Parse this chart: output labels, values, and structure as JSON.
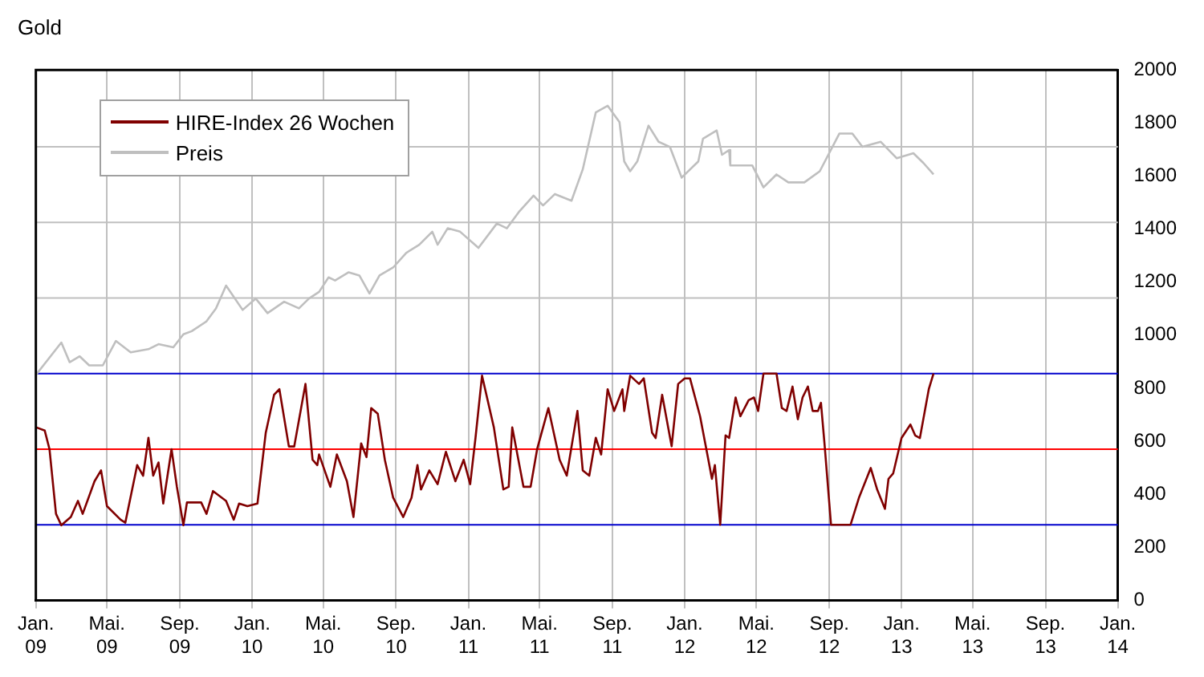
{
  "chart_data": {
    "type": "line",
    "title": "Gold",
    "xlim": [
      "2009-01",
      "2014-01"
    ],
    "xticks": [
      {
        "value": "2009-01",
        "label": "Jan.\n09"
      },
      {
        "value": "2009-05",
        "label": "Mai.\n09"
      },
      {
        "value": "2009-09",
        "label": "Sep.\n09"
      },
      {
        "value": "2010-01",
        "label": "Jan.\n10"
      },
      {
        "value": "2010-05",
        "label": "Mai.\n10"
      },
      {
        "value": "2010-09",
        "label": "Sep.\n10"
      },
      {
        "value": "2011-01",
        "label": "Jan.\n11"
      },
      {
        "value": "2011-05",
        "label": "Mai.\n11"
      },
      {
        "value": "2011-09",
        "label": "Sep.\n11"
      },
      {
        "value": "2012-01",
        "label": "Jan.\n12"
      },
      {
        "value": "2012-05",
        "label": "Mai.\n12"
      },
      {
        "value": "2012-09",
        "label": "Sep.\n12"
      },
      {
        "value": "2013-01",
        "label": "Jan.\n13"
      },
      {
        "value": "2013-05",
        "label": "Mai.\n13"
      },
      {
        "value": "2013-09",
        "label": "Sep.\n13"
      },
      {
        "value": "2014-01",
        "label": "Jan.\n14"
      }
    ],
    "ylim": [
      0,
      2000
    ],
    "yticks": [
      0,
      200,
      400,
      600,
      800,
      1000,
      1200,
      1400,
      1600,
      1800,
      2000
    ],
    "grid": "x",
    "legend": "top left",
    "ref_lines": [
      {
        "axis": "y",
        "value": 855,
        "color": "#0000cc"
      },
      {
        "axis": "y",
        "value": 570,
        "color": "#ff0000"
      },
      {
        "axis": "y",
        "value": 285,
        "color": "#0000cc"
      },
      {
        "axis": "y",
        "value": 1140,
        "color": "#c0c0c0"
      },
      {
        "axis": "y",
        "value": 1425,
        "color": "#c0c0c0"
      },
      {
        "axis": "y",
        "value": 1710,
        "color": "#c0c0c0"
      }
    ],
    "series": [
      {
        "name": "HIRE-Index 26 Wochen",
        "color": "#800000",
        "x": [
          "2009-01-02",
          "2009-01-16",
          "2009-01-24",
          "2009-02-04",
          "2009-02-13",
          "2009-03-01",
          "2009-03-13",
          "2009-03-21",
          "2009-04-10",
          "2009-04-21",
          "2009-05-01",
          "2009-05-24",
          "2009-06-01",
          "2009-06-21",
          "2009-07-01",
          "2009-07-10",
          "2009-07-18",
          "2009-07-27",
          "2009-08-04",
          "2009-08-18",
          "2009-08-27",
          "2009-09-07",
          "2009-09-13",
          "2009-10-07",
          "2009-10-16",
          "2009-10-27",
          "2009-11-18",
          "2009-12-01",
          "2009-12-10",
          "2009-12-24",
          "2010-01-10",
          "2010-01-24",
          "2010-02-07",
          "2010-02-16",
          "2010-03-04",
          "2010-03-13",
          "2010-04-01",
          "2010-04-13",
          "2010-04-21",
          "2010-04-24",
          "2010-05-13",
          "2010-05-24",
          "2010-06-10",
          "2010-06-21",
          "2010-07-04",
          "2010-07-13",
          "2010-07-21",
          "2010-08-01",
          "2010-08-13",
          "2010-08-27",
          "2010-09-13",
          "2010-09-27",
          "2010-10-07",
          "2010-10-13",
          "2010-10-27",
          "2010-11-10",
          "2010-11-24",
          "2010-12-10",
          "2010-12-24",
          "2011-01-04",
          "2011-01-13",
          "2011-01-24",
          "2011-02-13",
          "2011-03-01",
          "2011-03-10",
          "2011-03-16",
          "2011-04-04",
          "2011-04-16",
          "2011-04-27",
          "2011-05-16",
          "2011-06-04",
          "2011-06-16",
          "2011-07-04",
          "2011-07-13",
          "2011-07-24",
          "2011-08-04",
          "2011-08-13",
          "2011-08-24",
          "2011-09-04",
          "2011-09-18",
          "2011-09-21",
          "2011-10-01",
          "2011-10-16",
          "2011-10-24",
          "2011-11-07",
          "2011-11-13",
          "2011-11-24",
          "2011-12-10",
          "2011-12-21",
          "2012-01-01",
          "2012-01-10",
          "2012-01-27",
          "2012-02-10",
          "2012-02-16",
          "2012-02-21",
          "2012-03-01",
          "2012-03-10",
          "2012-03-16",
          "2012-03-27",
          "2012-04-04",
          "2012-04-18",
          "2012-04-27",
          "2012-05-04",
          "2012-05-13",
          "2012-06-04",
          "2012-06-13",
          "2012-06-21",
          "2012-07-01",
          "2012-07-10",
          "2012-07-18",
          "2012-07-27",
          "2012-08-04",
          "2012-08-13",
          "2012-08-18",
          "2012-08-24",
          "2012-09-04",
          "2012-10-07",
          "2012-10-21",
          "2012-11-10",
          "2012-11-21",
          "2012-12-04",
          "2012-12-10",
          "2012-12-18",
          "2013-01-01",
          "2013-01-16",
          "2013-01-24",
          "2013-02-01",
          "2013-02-16",
          "2013-02-24"
        ],
        "values": [
          652,
          640,
          570,
          326,
          283,
          314,
          375,
          326,
          449,
          490,
          355,
          304,
          293,
          510,
          470,
          613,
          470,
          520,
          365,
          570,
          428,
          283,
          369,
          369,
          326,
          412,
          375,
          304,
          365,
          355,
          365,
          632,
          775,
          796,
          580,
          580,
          816,
          530,
          510,
          550,
          428,
          550,
          449,
          314,
          592,
          540,
          725,
          704,
          530,
          387,
          314,
          387,
          510,
          418,
          490,
          438,
          560,
          449,
          530,
          438,
          613,
          847,
          652,
          418,
          428,
          652,
          428,
          428,
          570,
          725,
          530,
          470,
          714,
          490,
          470,
          613,
          550,
          796,
          714,
          796,
          714,
          847,
          816,
          837,
          632,
          612,
          775,
          581,
          816,
          837,
          837,
          694,
          530,
          458,
          510,
          285,
          622,
          612,
          765,
          694,
          755,
          765,
          714,
          855,
          855,
          725,
          714,
          806,
          683,
          765,
          806,
          714,
          714,
          745,
          591,
          285,
          285,
          386,
          499,
          417,
          345,
          458,
          479,
          612,
          663,
          622,
          612,
          796,
          855
        ]
      },
      {
        "name": "Preis",
        "color": "#bfbfbf",
        "x": [
          "2009-01-01",
          "2009-02-13",
          "2009-02-27",
          "2009-03-16",
          "2009-04-01",
          "2009-04-24",
          "2009-05-16",
          "2009-06-10",
          "2009-07-10",
          "2009-07-27",
          "2009-08-21",
          "2009-09-07",
          "2009-09-21",
          "2009-10-16",
          "2009-11-01",
          "2009-11-18",
          "2009-12-16",
          "2010-01-07",
          "2010-01-27",
          "2010-02-24",
          "2010-03-21",
          "2010-04-07",
          "2010-04-24",
          "2010-05-10",
          "2010-05-21",
          "2010-06-13",
          "2010-07-01",
          "2010-07-18",
          "2010-08-04",
          "2010-08-27",
          "2010-09-18",
          "2010-10-10",
          "2010-11-01",
          "2010-11-10",
          "2010-11-27",
          "2010-12-18",
          "2011-01-18",
          "2011-02-18",
          "2011-03-07",
          "2011-03-27",
          "2011-04-21",
          "2011-05-07",
          "2011-05-27",
          "2011-06-24",
          "2011-07-13",
          "2011-08-04",
          "2011-08-24",
          "2011-09-13",
          "2011-09-21",
          "2011-10-01",
          "2011-10-13",
          "2011-11-01",
          "2011-11-18",
          "2011-12-07",
          "2011-12-27",
          "2012-01-24",
          "2012-02-01",
          "2012-02-24",
          "2012-03-04",
          "2012-03-16",
          "2012-03-18",
          "2012-04-24",
          "2012-05-13",
          "2012-06-04",
          "2012-06-24",
          "2012-07-21",
          "2012-08-16",
          "2012-09-18",
          "2012-10-10",
          "2012-10-27",
          "2012-11-27",
          "2012-12-24",
          "2013-01-21",
          "2013-02-07",
          "2013-02-24"
        ],
        "values": [
          850,
          972,
          898,
          920,
          886,
          886,
          978,
          935,
          947,
          966,
          954,
          1003,
          1015,
          1052,
          1101,
          1187,
          1095,
          1138,
          1083,
          1126,
          1101,
          1138,
          1163,
          1218,
          1206,
          1237,
          1225,
          1157,
          1225,
          1255,
          1310,
          1341,
          1390,
          1341,
          1403,
          1390,
          1329,
          1421,
          1403,
          1464,
          1526,
          1489,
          1532,
          1507,
          1625,
          1840,
          1865,
          1803,
          1655,
          1618,
          1655,
          1790,
          1729,
          1710,
          1594,
          1655,
          1741,
          1772,
          1680,
          1698,
          1640,
          1640,
          1557,
          1606,
          1576,
          1576,
          1618,
          1760,
          1760,
          1710,
          1729,
          1667,
          1686,
          1649,
          1606
        ]
      }
    ]
  }
}
